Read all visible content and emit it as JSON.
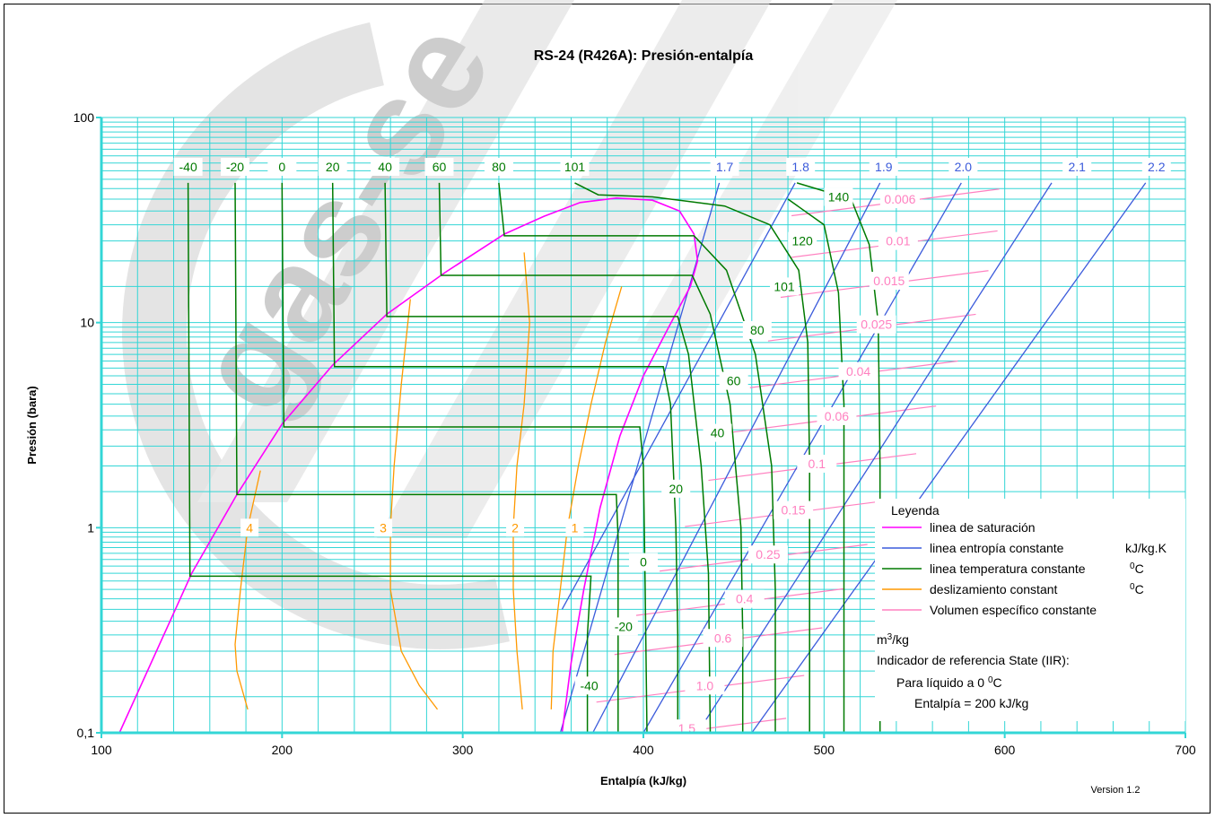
{
  "chart_data": {
    "type": "line",
    "title": "RS-24 (R426A): Presión-entalpía",
    "xlabel": "Entalpía (kJ/kg)",
    "ylabel": "Presión (bara)",
    "xlim": [
      100,
      700
    ],
    "ylim": [
      0.1,
      100
    ],
    "yscale": "log",
    "grid": true,
    "x_ticks": [
      "100",
      "200",
      "300",
      "400",
      "500",
      "600",
      "700"
    ],
    "y_ticks": [
      "0,1",
      "1",
      "10",
      "100"
    ],
    "version": "Version 1.2",
    "watermark": "gas-se",
    "colors": {
      "saturation": "#ff00ff",
      "entropy": "#3b5bdb",
      "temperature": "#007a00",
      "glide": "#ff9900",
      "volume": "#ff80c0",
      "grid": "#33d6d6"
    },
    "legend": {
      "title": "Leyenda",
      "saturation": "linea de saturación",
      "entropy": "linea entropía constante",
      "entropy_unit": "kJ/kg.K",
      "temperature": "linea temperatura constante",
      "temperature_unit": "0C",
      "glide": "deslizamiento constant",
      "glide_unit": "0C",
      "volume": "Volumen específico constante",
      "volume_unit": "m3/kg",
      "ref_title": "Indicador de referencia State (IIR):",
      "ref_line1": "Para líquido a 0 0C",
      "ref_line2": "Entalpía = 200 kJ/kg"
    },
    "saturation_curve": [
      [
        110,
        0.1
      ],
      [
        150,
        0.6
      ],
      [
        175,
        1.45
      ],
      [
        200,
        3.2
      ],
      [
        228,
        6.2
      ],
      [
        258,
        11
      ],
      [
        290,
        17.5
      ],
      [
        323,
        27
      ],
      [
        345,
        33
      ],
      [
        365,
        38.5
      ],
      [
        385,
        40.5
      ],
      [
        405,
        39.5
      ],
      [
        420,
        35
      ],
      [
        428,
        27
      ],
      [
        430,
        20
      ],
      [
        426,
        15
      ],
      [
        414,
        9.5
      ],
      [
        400,
        5.5
      ],
      [
        387,
        2.8
      ],
      [
        376,
        1.25
      ],
      [
        367,
        0.5
      ],
      [
        360,
        0.22
      ],
      [
        355,
        0.1
      ]
    ],
    "isotherms_top": [
      "-40",
      "-20",
      "0",
      "20",
      "40",
      "60",
      "80",
      "101"
    ],
    "isotherms": [
      {
        "t": "-40",
        "liq_h": 149,
        "p": 0.58,
        "vap_h": 371,
        "top_h": 148,
        "low": [
          [
            369,
            0.3
          ],
          [
            369,
            0.1
          ]
        ]
      },
      {
        "t": "-20",
        "liq_h": 175,
        "p": 1.45,
        "vap_h": 385,
        "top_h": 174,
        "low": [
          [
            386,
            0.9
          ],
          [
            386,
            0.3
          ],
          [
            386,
            0.1
          ]
        ]
      },
      {
        "t": "0",
        "liq_h": 201,
        "p": 3.1,
        "vap_h": 398,
        "top_h": 200,
        "low": [
          [
            400,
            2
          ],
          [
            401,
            0.5
          ],
          [
            402,
            0.1
          ]
        ]
      },
      {
        "t": "20",
        "liq_h": 229,
        "p": 6.1,
        "vap_h": 411,
        "top_h": 228,
        "low": [
          [
            415,
            4
          ],
          [
            418,
            1
          ],
          [
            419,
            0.3
          ],
          [
            419,
            0.1
          ]
        ]
      },
      {
        "t": "40",
        "liq_h": 258,
        "p": 10.7,
        "vap_h": 419,
        "top_h": 257,
        "low": [
          [
            425,
            7
          ],
          [
            432,
            2
          ],
          [
            436,
            0.6
          ],
          [
            437,
            0.1
          ]
        ]
      },
      {
        "t": "60",
        "liq_h": 288,
        "p": 17,
        "vap_h": 427,
        "top_h": 287,
        "low": [
          [
            437,
            11
          ],
          [
            448,
            4
          ],
          [
            454,
            1
          ],
          [
            455,
            0.3
          ],
          [
            455,
            0.1
          ]
        ]
      },
      {
        "t": "80",
        "liq_h": 323,
        "p": 26.5,
        "vap_h": 428,
        "top_h": 320,
        "low": [
          [
            446,
            18
          ],
          [
            462,
            7
          ],
          [
            471,
            2
          ],
          [
            473,
            0.5
          ],
          [
            473,
            0.1
          ]
        ]
      }
    ],
    "supercritical_isotherms": [
      {
        "t": "101",
        "pts": [
          [
            362,
            48
          ],
          [
            375,
            42
          ],
          [
            405,
            41
          ],
          [
            445,
            37
          ],
          [
            470,
            30
          ],
          [
            486,
            18
          ],
          [
            491,
            8
          ],
          [
            492,
            2
          ],
          [
            492,
            0.1
          ]
        ]
      },
      {
        "t": "120",
        "pts": [
          [
            480,
            40
          ],
          [
            500,
            30
          ],
          [
            508,
            14
          ],
          [
            511,
            4
          ],
          [
            511,
            0.1
          ]
        ]
      },
      {
        "t": "140",
        "pts": [
          [
            485,
            48
          ],
          [
            515,
            40
          ],
          [
            525,
            24
          ],
          [
            530,
            10
          ],
          [
            531,
            2
          ],
          [
            531,
            0.1
          ]
        ]
      }
    ],
    "isotherm_labels": [
      {
        "t": "140",
        "h": 508,
        "p": 41
      },
      {
        "t": "120",
        "h": 488,
        "p": 25
      },
      {
        "t": "101",
        "h": 478,
        "p": 15
      },
      {
        "t": "80",
        "h": 463,
        "p": 9.2
      },
      {
        "t": "60",
        "h": 450,
        "p": 5.2
      },
      {
        "t": "40",
        "h": 441,
        "p": 2.9
      },
      {
        "t": "20",
        "h": 418,
        "p": 1.55
      },
      {
        "t": "0",
        "h": 400,
        "p": 0.68
      },
      {
        "t": "-20",
        "h": 389,
        "p": 0.33
      },
      {
        "t": "-40",
        "h": 370,
        "p": 0.17
      }
    ],
    "entropy_lines": [
      {
        "s": "1.7",
        "pts": [
          [
            354,
            0.1
          ],
          [
            442,
            48
          ]
        ]
      },
      {
        "s": "1.8",
        "pts": [
          [
            355,
            0.4
          ],
          [
            484,
            48
          ]
        ]
      },
      {
        "s": "1.9",
        "pts": [
          [
            372,
            0.1
          ],
          [
            531,
            48
          ]
        ]
      },
      {
        "s": "2.0",
        "pts": [
          [
            400,
            0.1
          ],
          [
            576,
            48
          ]
        ]
      },
      {
        "s": "2.1",
        "pts": [
          [
            430,
            0.1
          ],
          [
            626,
            48
          ]
        ]
      },
      {
        "s": "2.2",
        "pts": [
          [
            460,
            0.1
          ],
          [
            678,
            48
          ]
        ]
      }
    ],
    "entropy_label_xs": [
      445,
      487,
      533,
      577,
      640,
      684
    ],
    "volume_lines": [
      {
        "v": "0.006",
        "h": 542,
        "p": 40
      },
      {
        "v": "0.01",
        "h": 541,
        "p": 25
      },
      {
        "v": "0.015",
        "h": 536,
        "p": 16
      },
      {
        "v": "0.025",
        "h": 529,
        "p": 9.8
      },
      {
        "v": "0.04",
        "h": 519,
        "p": 5.8
      },
      {
        "v": "0.06",
        "h": 507,
        "p": 3.5
      },
      {
        "v": "0.1",
        "h": 496,
        "p": 2.05
      },
      {
        "v": "0.15",
        "h": 483,
        "p": 1.22
      },
      {
        "v": "0.25",
        "h": 469,
        "p": 0.74
      },
      {
        "v": "0.4",
        "h": 456,
        "p": 0.45
      },
      {
        "v": "0.6",
        "h": 444,
        "p": 0.29
      },
      {
        "v": "1.0",
        "h": 434,
        "p": 0.17
      },
      {
        "v": "1.5",
        "h": 424,
        "p": 0.105
      }
    ],
    "glide_lines": [
      {
        "g": "4",
        "pts": [
          [
            188,
            1.9
          ],
          [
            181,
            1
          ],
          [
            177,
            0.5
          ],
          [
            174,
            0.27
          ],
          [
            175,
            0.2
          ],
          [
            181,
            0.13
          ]
        ]
      },
      {
        "g": "3",
        "pts": [
          [
            271,
            13
          ],
          [
            266,
            5
          ],
          [
            262,
            2
          ],
          [
            260,
            1
          ],
          [
            260,
            0.5
          ],
          [
            266,
            0.25
          ],
          [
            276,
            0.17
          ],
          [
            286,
            0.13
          ]
        ]
      },
      {
        "g": "2",
        "pts": [
          [
            334,
            22
          ],
          [
            337,
            10
          ],
          [
            334,
            4
          ],
          [
            330,
            2
          ],
          [
            328,
            1
          ],
          [
            328,
            0.5
          ],
          [
            330,
            0.25
          ],
          [
            333,
            0.13
          ]
        ]
      },
      {
        "g": "1",
        "pts": [
          [
            388,
            15
          ],
          [
            379,
            8
          ],
          [
            371,
            4
          ],
          [
            364,
            2
          ],
          [
            358,
            1
          ],
          [
            354,
            0.5
          ],
          [
            350,
            0.25
          ],
          [
            349,
            0.13
          ]
        ]
      }
    ],
    "glide_labels": [
      {
        "g": "4",
        "h": 182,
        "p": 1
      },
      {
        "g": "3",
        "h": 256,
        "p": 1
      },
      {
        "g": "2",
        "h": 329,
        "p": 1
      },
      {
        "g": "1",
        "h": 362,
        "p": 1
      }
    ]
  }
}
